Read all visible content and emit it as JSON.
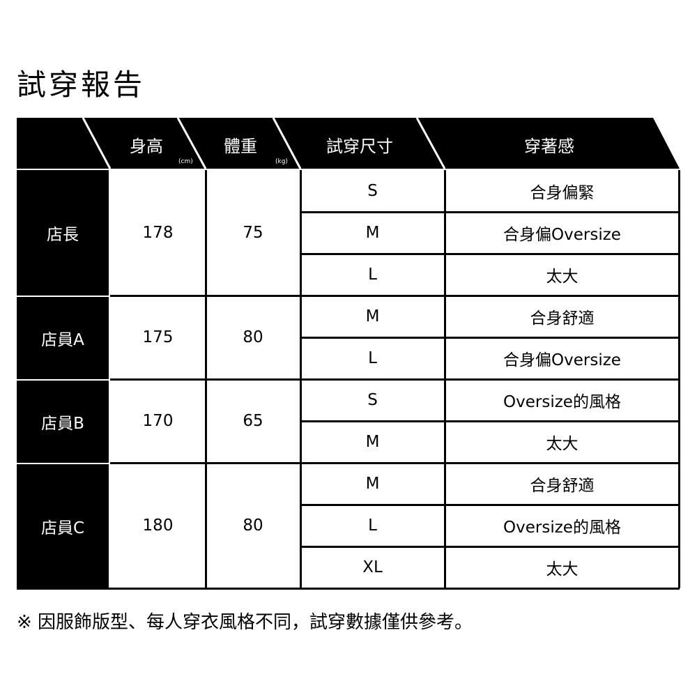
{
  "title": "試穿報告",
  "headers": {
    "height": "身高",
    "height_unit": "(cm)",
    "weight": "體重",
    "weight_unit": "(kg)",
    "size": "試穿尺寸",
    "fit": "穿著感"
  },
  "staff": [
    {
      "name": "店長",
      "height": "178",
      "weight": "75",
      "tries": [
        {
          "size": "S",
          "fit": "合身偏緊"
        },
        {
          "size": "M",
          "fit": "合身偏Oversize"
        },
        {
          "size": "L",
          "fit": "太大"
        }
      ]
    },
    {
      "name": "店員A",
      "height": "175",
      "weight": "80",
      "tries": [
        {
          "size": "M",
          "fit": "合身舒適"
        },
        {
          "size": "L",
          "fit": "合身偏Oversize"
        }
      ]
    },
    {
      "name": "店員B",
      "height": "170",
      "weight": "65",
      "tries": [
        {
          "size": "S",
          "fit": "Oversize的風格"
        },
        {
          "size": "M",
          "fit": "太大"
        }
      ]
    },
    {
      "name": "店員C",
      "height": "180",
      "weight": "80",
      "tries": [
        {
          "size": "M",
          "fit": "合身舒適"
        },
        {
          "size": "L",
          "fit": "Oversize的風格"
        },
        {
          "size": "XL",
          "fit": "太大"
        }
      ]
    }
  ],
  "note": "※ 因服飾版型、每人穿衣風格不同，試穿數據僅供參考。"
}
